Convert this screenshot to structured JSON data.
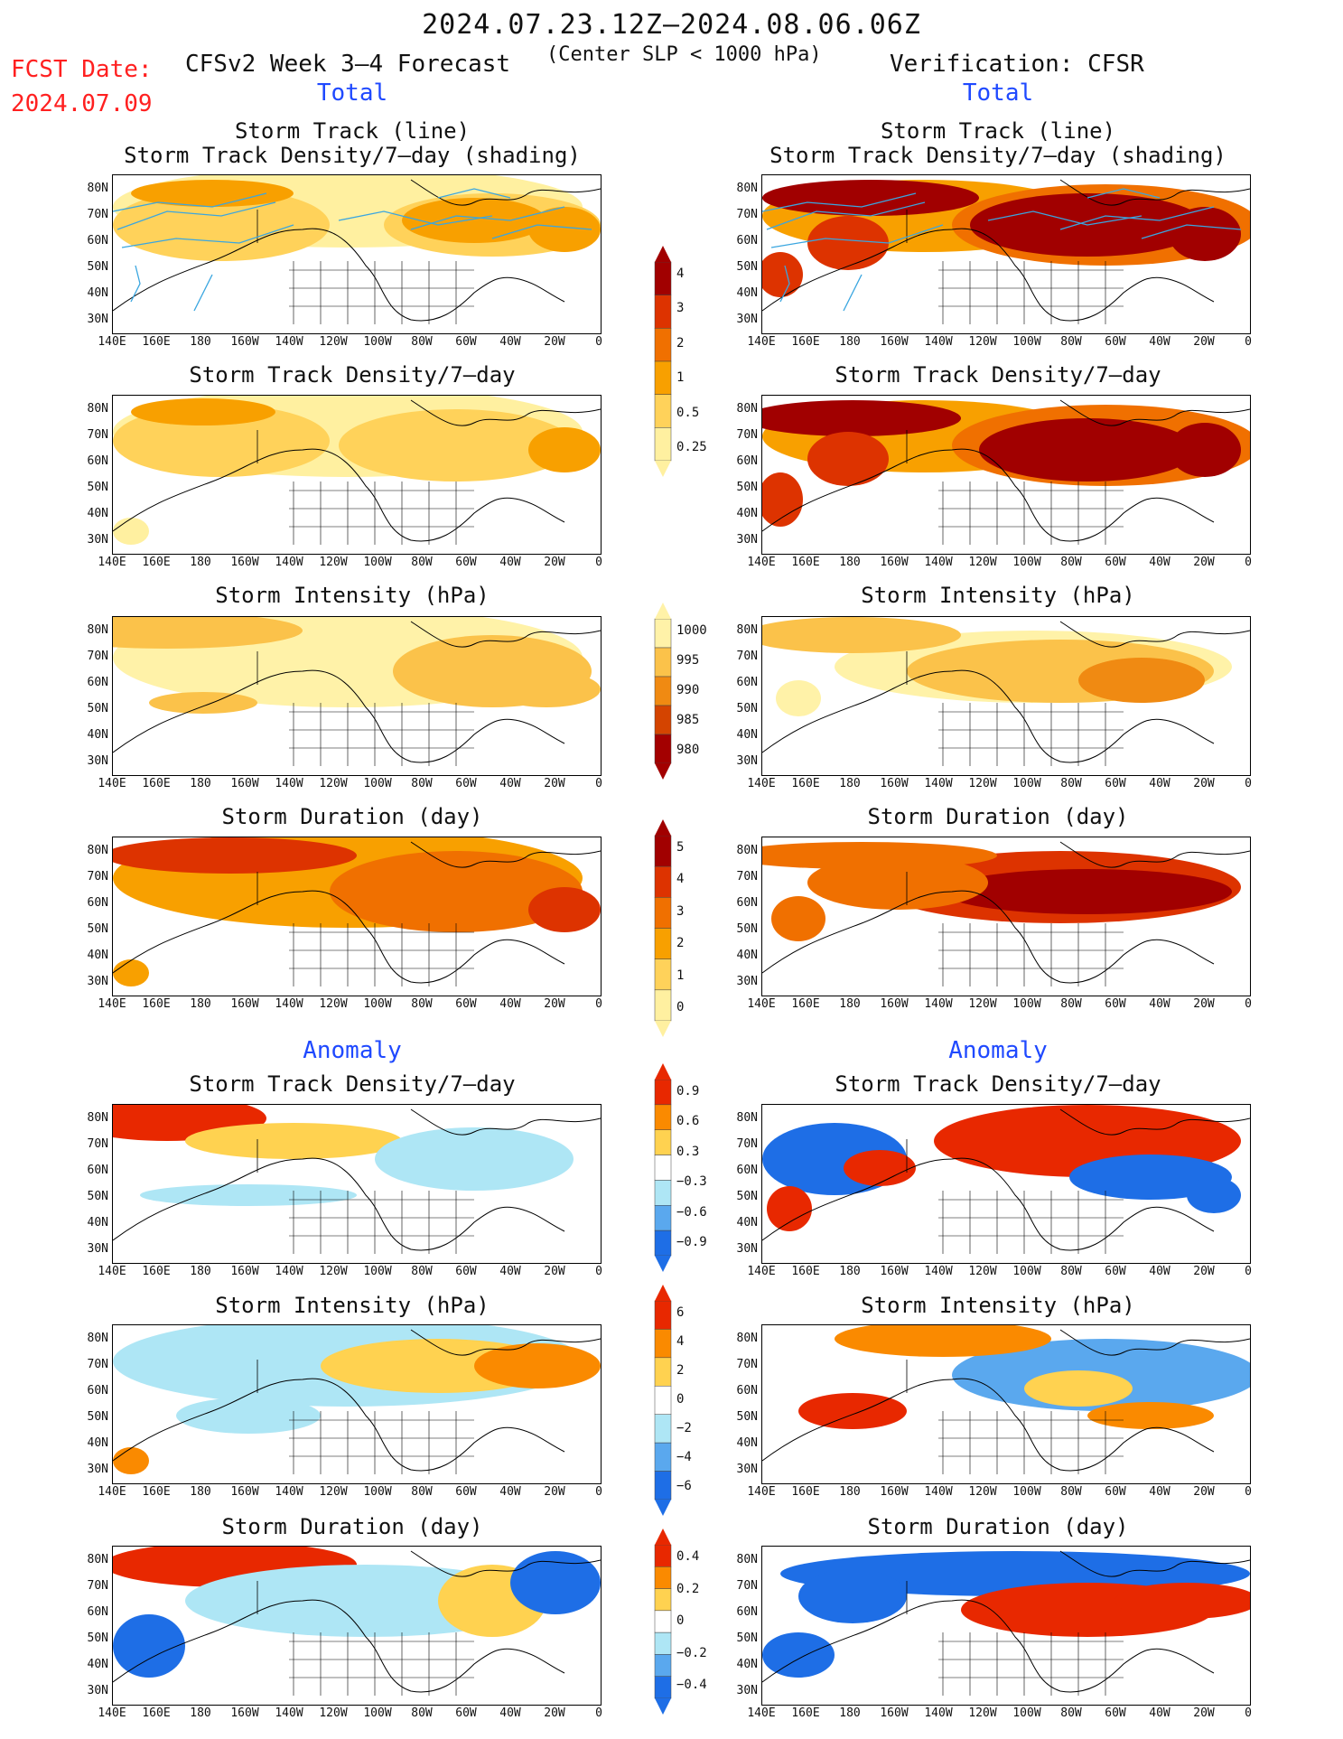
{
  "header": {
    "period": "2024.07.23.12Z–2024.08.06.06Z",
    "fcst_label": "FCST Date:",
    "fcst_date": "2024.07.09",
    "left_title": "CFSv2 Week 3–4 Forecast",
    "slp_note": "(Center SLP < 1000 hPa)",
    "right_title": "Verification: CFSR",
    "total_label": "Total",
    "anomaly_label": "Anomaly"
  },
  "panel_titles": {
    "storm_track": "Storm Track (line)",
    "storm_track_density_shading": "Storm Track Density/7–day (shading)",
    "storm_track_density": "Storm Track Density/7–day",
    "storm_intensity": "Storm Intensity (hPa)",
    "storm_duration": "Storm Duration (day)"
  },
  "axes": {
    "lat_labels": [
      "80N",
      "70N",
      "60N",
      "50N",
      "40N",
      "30N"
    ],
    "lon_labels": [
      "140E",
      "160E",
      "180",
      "160W",
      "140W",
      "120W",
      "100W",
      "80W",
      "60W",
      "40W",
      "20W",
      "0"
    ]
  },
  "colorbars": {
    "density": {
      "labels": [
        "4",
        "3",
        "2",
        "1",
        "0.5",
        "0.25"
      ],
      "colors": [
        "#a10000",
        "#dd3300",
        "#f07000",
        "#f8a000",
        "#ffd25a",
        "#fff0a0"
      ]
    },
    "intensity": {
      "labels": [
        "1000",
        "995",
        "990",
        "985",
        "980"
      ],
      "colors": [
        "#fff2a8",
        "#fbc24a",
        "#f08a12",
        "#d44400",
        "#a30000"
      ]
    },
    "duration": {
      "labels": [
        "5",
        "4",
        "3",
        "2",
        "1",
        "0"
      ],
      "colors": [
        "#a10000",
        "#dd3300",
        "#f07000",
        "#f8a000",
        "#ffd25a",
        "#fff0a0"
      ]
    },
    "anom_density": {
      "labels": [
        "0.9",
        "0.6",
        "0.3",
        "−0.3",
        "−0.6",
        "−0.9"
      ]
    },
    "anom_intensity": {
      "labels": [
        "6",
        "4",
        "2",
        "0",
        "−2",
        "−4",
        "−6"
      ]
    },
    "anom_duration": {
      "labels": [
        "0.4",
        "0.2",
        "0",
        "−0.2",
        "−0.4"
      ]
    },
    "anom_colors": [
      "#e82800",
      "#fa8a00",
      "#ffd250",
      "#ffffff",
      "#aee6f5",
      "#5aa8ee",
      "#1e6ee6"
    ]
  }
}
